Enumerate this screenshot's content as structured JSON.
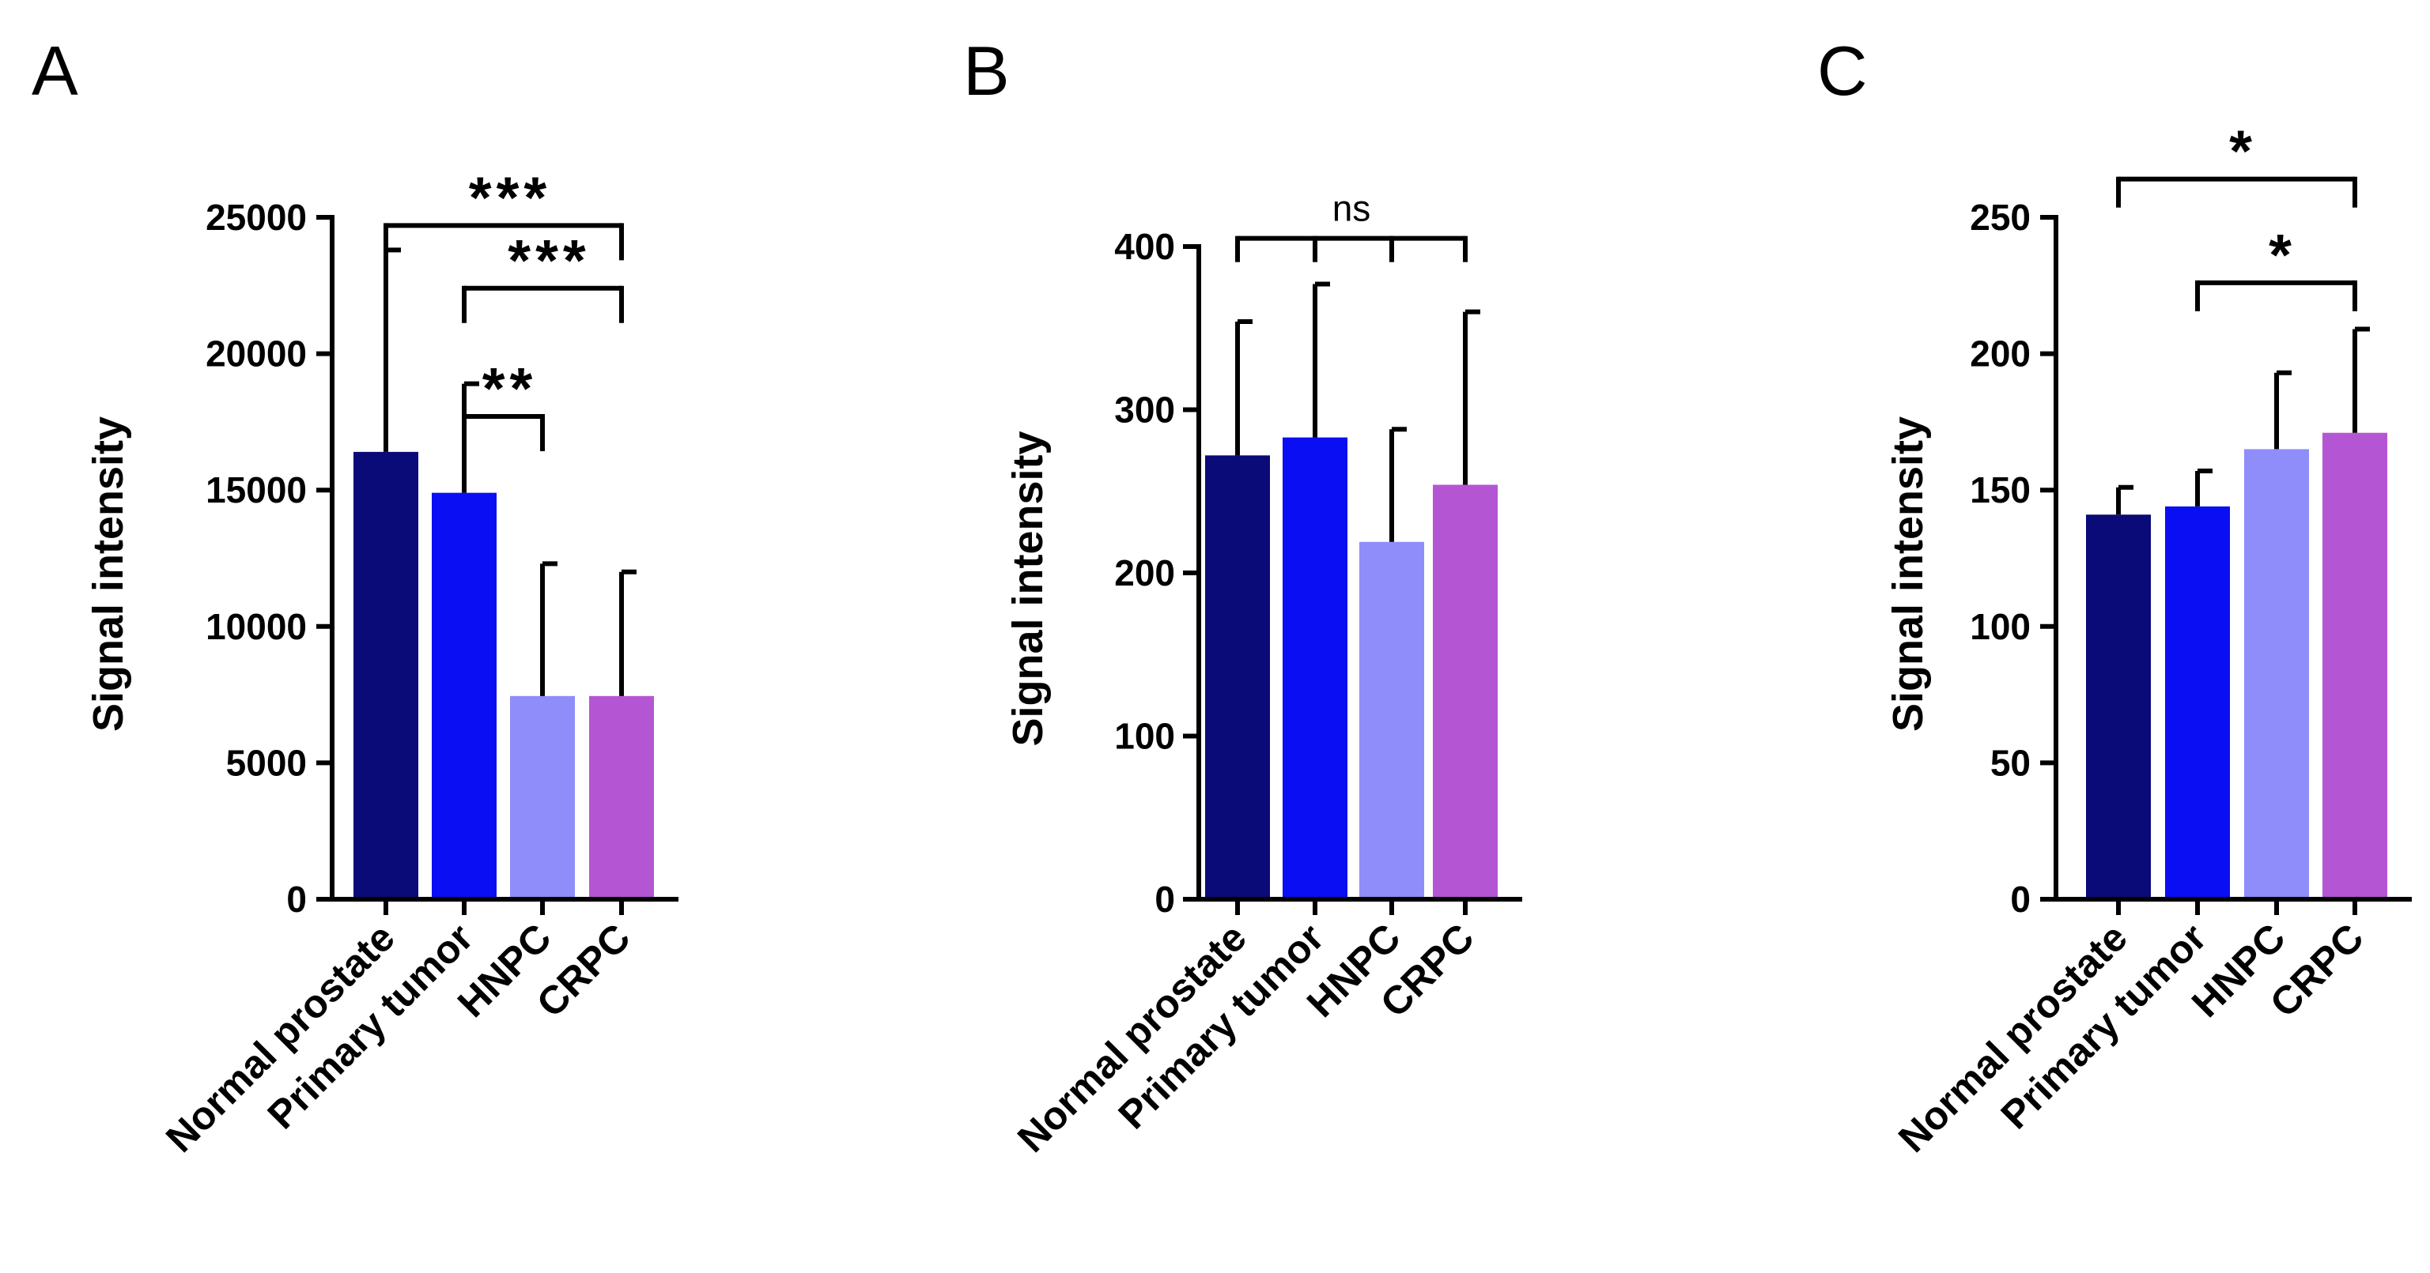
{
  "figure": {
    "panels": [
      "A",
      "B",
      "C"
    ]
  },
  "colors": {
    "Normal prostate": "#0a0a78",
    "Primary tumor": "#0a0ef2",
    "HNPC": "#8f8dfa",
    "CRPC": "#b456d4",
    "axis": "#000000"
  },
  "chart_data": [
    {
      "type": "bar",
      "panel": "A",
      "title": "",
      "xlabel": "",
      "ylabel": "Signal intensity",
      "categories": [
        "Normal prostate",
        "Primary tumor",
        "HNPC",
        "CRPC"
      ],
      "values": [
        16400,
        14900,
        7450,
        7450
      ],
      "error_upper": [
        23800,
        18900,
        12300,
        12000
      ],
      "ylim": [
        0,
        25000
      ],
      "yticks": [
        0,
        5000,
        10000,
        15000,
        20000,
        25000
      ],
      "significance": [
        {
          "from": 0,
          "to": 3,
          "label": "***",
          "level": 24700,
          "ends": [
            0,
            3
          ]
        },
        {
          "from": 1,
          "to": 3,
          "label": "***",
          "level": 22400,
          "ends": [
            1,
            3
          ]
        },
        {
          "from": 1,
          "to": 2,
          "label": "**",
          "level": 17700,
          "ends": [
            2
          ]
        }
      ]
    },
    {
      "type": "bar",
      "panel": "B",
      "title": "",
      "xlabel": "",
      "ylabel": "Signal intensity",
      "categories": [
        "Normal prostate",
        "Primary tumor",
        "HNPC",
        "CRPC"
      ],
      "values": [
        272,
        283,
        219,
        254
      ],
      "error_upper": [
        354,
        377,
        288,
        360
      ],
      "ylim": [
        0,
        400
      ],
      "yticks": [
        0,
        100,
        200,
        300,
        400
      ],
      "significance": [
        {
          "from": 0,
          "to": 3,
          "label": "ns",
          "level": 405,
          "ends": [
            0,
            1,
            2,
            3
          ]
        }
      ]
    },
    {
      "type": "bar",
      "panel": "C",
      "title": "",
      "xlabel": "",
      "ylabel": "Signal intensity",
      "categories": [
        "Normal prostate",
        "Primary tumor",
        "HNPC",
        "CRPC"
      ],
      "values": [
        141,
        144,
        165,
        171
      ],
      "error_upper": [
        151,
        157,
        193,
        209
      ],
      "ylim": [
        0,
        250
      ],
      "yticks": [
        0,
        50,
        100,
        150,
        200,
        250
      ],
      "significance": [
        {
          "from": 0,
          "to": 3,
          "label": "*",
          "level": 264,
          "ends": [
            0,
            3
          ]
        },
        {
          "from": 1,
          "to": 3,
          "label": "*",
          "level": 226,
          "ends": [
            1,
            3
          ]
        }
      ]
    }
  ]
}
